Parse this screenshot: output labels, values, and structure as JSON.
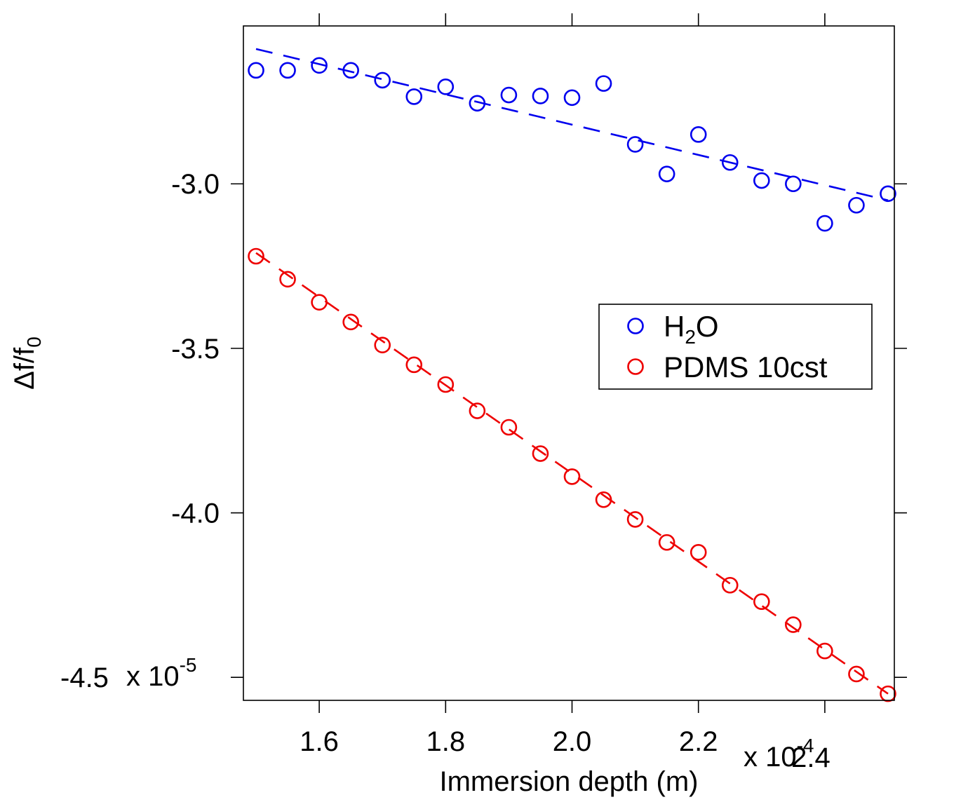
{
  "chart_data": {
    "type": "scatter",
    "title": "",
    "xlabel": "Immersion depth (m)",
    "ylabel": "Δf/f",
    "ylabel_subscript": "0",
    "x_scale_prefix": "x 10",
    "x_scale_exponent": "-4",
    "y_scale_prefix": "x 10",
    "y_scale_exponent": "-5",
    "xlim": [
      1.48,
      2.51
    ],
    "ylim": [
      -4.57,
      -2.52
    ],
    "x_ticks": [
      1.6,
      1.8,
      2.0,
      2.2,
      2.4
    ],
    "x_tick_labels": [
      "1.6",
      "1.8",
      "2.0",
      "2.2",
      "2.4"
    ],
    "y_ticks": [
      -3.0,
      -3.5,
      -4.0,
      -4.5
    ],
    "y_tick_labels": [
      "-3.0",
      "-3.5",
      "-4.0",
      "-4.5"
    ],
    "legend_position": "center-right",
    "series": [
      {
        "name": "H2O",
        "legend_main": "H",
        "legend_sub": "2",
        "legend_tail": "O",
        "color": "#0000ee",
        "marker": "circle",
        "x": [
          1.5,
          1.55,
          1.6,
          1.65,
          1.7,
          1.75,
          1.8,
          1.85,
          1.9,
          1.95,
          2.0,
          2.05,
          2.1,
          2.15,
          2.2,
          2.25,
          2.3,
          2.35,
          2.4,
          2.45,
          2.5
        ],
        "values": [
          -2.655,
          -2.655,
          -2.64,
          -2.655,
          -2.685,
          -2.735,
          -2.705,
          -2.755,
          -2.73,
          -2.733,
          -2.738,
          -2.695,
          -2.88,
          -2.97,
          -2.85,
          -2.935,
          -2.99,
          -3.0,
          -3.12,
          -3.065,
          -3.03
        ],
        "fit": {
          "x": [
            1.5,
            2.5
          ],
          "y": [
            -2.59,
            -3.05
          ],
          "style": "dashed"
        }
      },
      {
        "name": "PDMS 10cst",
        "legend_main": "PDMS 10cst",
        "color": "#ee0000",
        "marker": "circle",
        "x": [
          1.5,
          1.55,
          1.6,
          1.65,
          1.7,
          1.75,
          1.8,
          1.85,
          1.9,
          1.95,
          2.0,
          2.05,
          2.1,
          2.15,
          2.2,
          2.25,
          2.3,
          2.35,
          2.4,
          2.45,
          2.5
        ],
        "values": [
          -3.22,
          -3.29,
          -3.36,
          -3.42,
          -3.49,
          -3.55,
          -3.61,
          -3.69,
          -3.74,
          -3.82,
          -3.89,
          -3.96,
          -4.02,
          -4.09,
          -4.12,
          -4.22,
          -4.27,
          -4.34,
          -4.42,
          -4.49,
          -4.55
        ],
        "fit": {
          "x": [
            1.5,
            2.5
          ],
          "y": [
            -3.21,
            -4.55
          ],
          "style": "dashed"
        }
      }
    ]
  }
}
